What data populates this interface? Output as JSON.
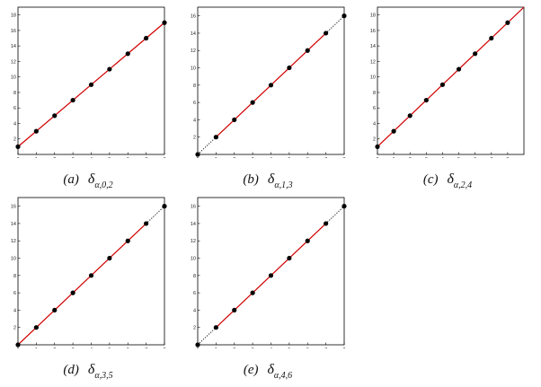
{
  "chart_data": [
    {
      "type": "scatter",
      "caption": {
        "letter": "(a)",
        "symbol": "δ",
        "subscript": "α,0,2"
      },
      "xlim": [
        0,
        8
      ],
      "ylim": [
        0,
        19
      ],
      "x_ticks": [
        "0",
        "1",
        "2",
        "3",
        "4",
        "5",
        "6",
        "7",
        "8"
      ],
      "y_ticks": [
        "2",
        "4",
        "6",
        "8",
        "10",
        "12",
        "14",
        "16",
        "18"
      ],
      "points": [
        [
          0,
          1
        ],
        [
          1,
          3
        ],
        [
          2,
          5
        ],
        [
          3,
          7
        ],
        [
          4,
          9
        ],
        [
          5,
          11
        ],
        [
          6,
          13
        ],
        [
          7,
          15
        ],
        [
          8,
          17
        ]
      ],
      "line_red": [
        0,
        8
      ],
      "line_dotted": [
        0,
        8
      ],
      "colors": {
        "red": "#d40000",
        "dotted": "#000000"
      }
    },
    {
      "type": "scatter",
      "caption": {
        "letter": "(b)",
        "symbol": "δ",
        "subscript": "α,1,3"
      },
      "xlim": [
        0,
        8
      ],
      "ylim": [
        0,
        17
      ],
      "x_ticks": [
        "0",
        "1",
        "2",
        "3",
        "4",
        "5",
        "6",
        "7",
        "8"
      ],
      "y_ticks": [
        "2",
        "4",
        "6",
        "8",
        "10",
        "12",
        "14",
        "16"
      ],
      "points": [
        [
          0,
          0
        ],
        [
          1,
          2
        ],
        [
          2,
          4
        ],
        [
          3,
          6
        ],
        [
          4,
          8
        ],
        [
          5,
          10
        ],
        [
          6,
          12
        ],
        [
          7,
          14
        ],
        [
          8,
          16
        ]
      ],
      "line_red": [
        1,
        7
      ],
      "line_dotted": [
        0,
        8
      ],
      "colors": {
        "red": "#d40000",
        "dotted": "#000000"
      }
    },
    {
      "type": "scatter",
      "caption": {
        "letter": "(c)",
        "symbol": "δ",
        "subscript": "α,2,4"
      },
      "xlim": [
        0,
        9
      ],
      "ylim": [
        0,
        19
      ],
      "x_ticks": [
        "0",
        "1",
        "2",
        "3",
        "4",
        "5",
        "6",
        "7",
        "8"
      ],
      "y_ticks": [
        "2",
        "4",
        "6",
        "8",
        "10",
        "12",
        "14",
        "16",
        "18"
      ],
      "points": [
        [
          0,
          1
        ],
        [
          1,
          3
        ],
        [
          2,
          5
        ],
        [
          3,
          7
        ],
        [
          4,
          9
        ],
        [
          5,
          11
        ],
        [
          6,
          13
        ],
        [
          7,
          15
        ],
        [
          8,
          17
        ]
      ],
      "line_red": [
        0,
        9
      ],
      "line_dotted": [
        0,
        9
      ],
      "colors": {
        "red": "#d40000",
        "dotted": "#000000"
      }
    },
    {
      "type": "scatter",
      "caption": {
        "letter": "(d)",
        "symbol": "δ",
        "subscript": "α,3,5"
      },
      "xlim": [
        0,
        8
      ],
      "ylim": [
        0,
        17
      ],
      "x_ticks": [
        "0",
        "1",
        "2",
        "3",
        "4",
        "5",
        "6",
        "7",
        "8"
      ],
      "y_ticks": [
        "2",
        "4",
        "6",
        "8",
        "10",
        "12",
        "14",
        "16"
      ],
      "points": [
        [
          0,
          0
        ],
        [
          1,
          2
        ],
        [
          2,
          4
        ],
        [
          3,
          6
        ],
        [
          4,
          8
        ],
        [
          5,
          10
        ],
        [
          6,
          12
        ],
        [
          7,
          14
        ],
        [
          8,
          16
        ]
      ],
      "line_red": [
        0,
        7
      ],
      "line_dotted": [
        0,
        8
      ],
      "colors": {
        "red": "#d40000",
        "dotted": "#000000"
      }
    },
    {
      "type": "scatter",
      "caption": {
        "letter": "(e)",
        "symbol": "δ",
        "subscript": "α,4,6"
      },
      "xlim": [
        0,
        8
      ],
      "ylim": [
        0,
        17
      ],
      "x_ticks": [
        "0",
        "1",
        "2",
        "3",
        "4",
        "5",
        "6",
        "7",
        "8"
      ],
      "y_ticks": [
        "2",
        "4",
        "6",
        "8",
        "10",
        "12",
        "14",
        "16"
      ],
      "points": [
        [
          0,
          0
        ],
        [
          1,
          2
        ],
        [
          2,
          4
        ],
        [
          3,
          6
        ],
        [
          4,
          8
        ],
        [
          5,
          10
        ],
        [
          6,
          12
        ],
        [
          7,
          14
        ],
        [
          8,
          16
        ]
      ],
      "line_red": [
        1,
        7
      ],
      "line_dotted": [
        0,
        8
      ],
      "colors": {
        "red": "#d40000",
        "dotted": "#000000"
      }
    }
  ]
}
